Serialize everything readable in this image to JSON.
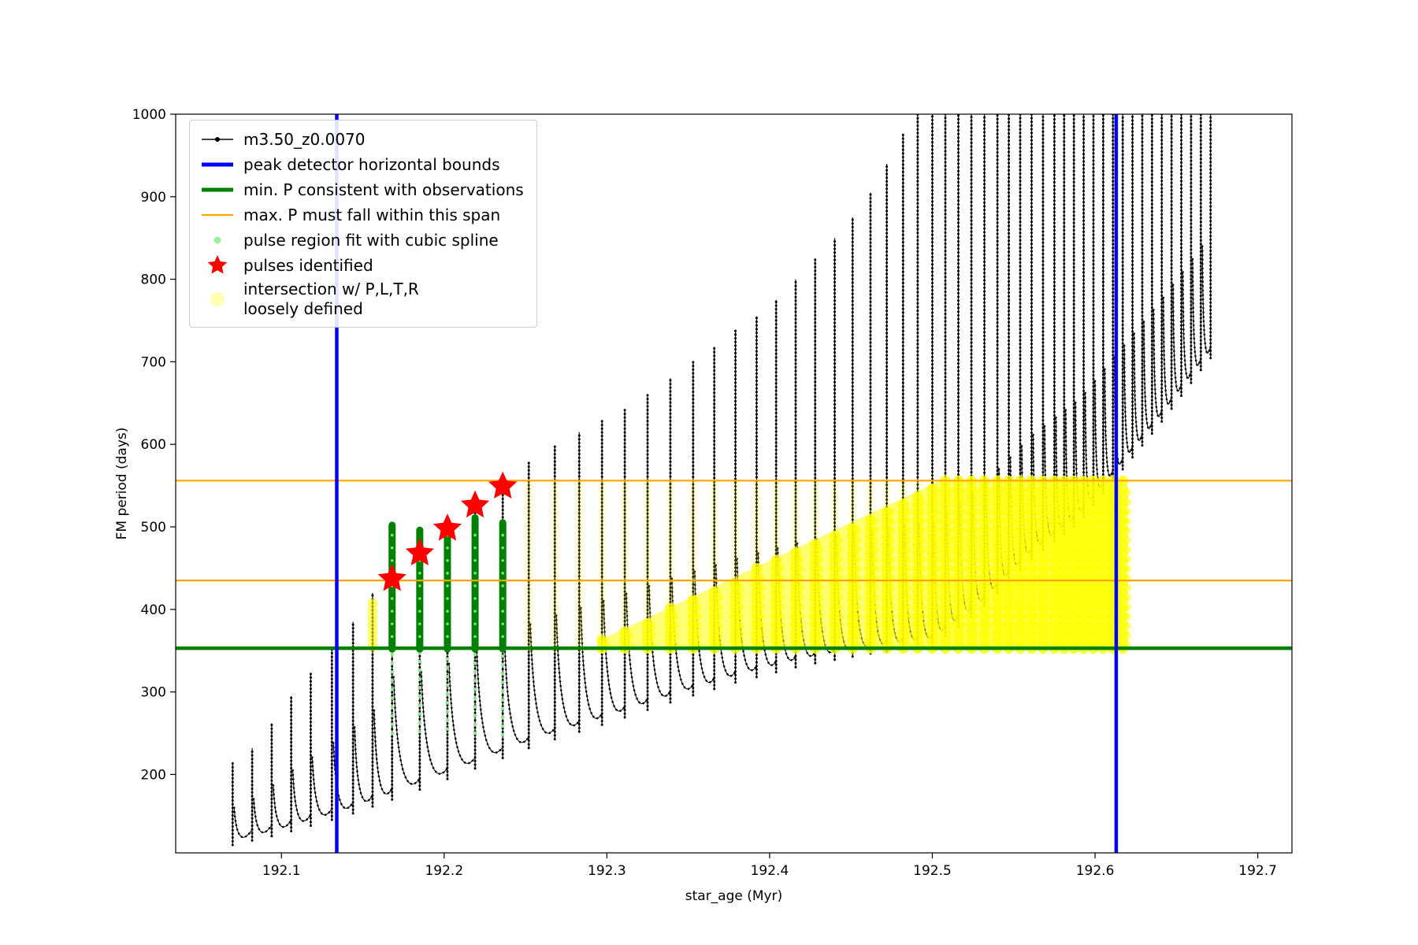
{
  "axes": {
    "xlabel": "star_age (Myr)",
    "ylabel": "FM period (days)",
    "xlim": [
      192.035,
      192.721
    ],
    "ylim": [
      105,
      1000
    ],
    "xticks": [
      192.1,
      192.2,
      192.3,
      192.4,
      192.5,
      192.6,
      192.7
    ],
    "xtick_labels": [
      "192.1",
      "192.2",
      "192.3",
      "192.4",
      "192.5",
      "192.6",
      "192.7"
    ],
    "yticks": [
      200,
      300,
      400,
      500,
      600,
      700,
      800,
      900,
      1000
    ],
    "ytick_labels": [
      "200",
      "300",
      "400",
      "500",
      "600",
      "700",
      "800",
      "900",
      "1000"
    ]
  },
  "legend": {
    "items": [
      {
        "label": "m3.50_z0.0070",
        "marker": "line-dot",
        "color": "#000000"
      },
      {
        "label": "peak detector horizontal bounds",
        "marker": "thick-line",
        "color": "#0000ff"
      },
      {
        "label": "min. P consistent with observations",
        "marker": "thick-line",
        "color": "#008000"
      },
      {
        "label": "max. P must fall within this span",
        "marker": "line",
        "color": "#ffa500"
      },
      {
        "label": "pulse region fit with cubic spline",
        "marker": "dot",
        "color": "#90ee90"
      },
      {
        "label": "pulses identified",
        "marker": "star",
        "color": "#ff0000"
      },
      {
        "label": "intersection w/ P,L,T,R\nloosely defined",
        "marker": "big-dot-faint",
        "color": "#ffff00"
      }
    ]
  },
  "chart_data": {
    "type": "scatter",
    "title": "",
    "xlabel": "star_age (Myr)",
    "ylabel": "FM period (days)",
    "xlim": [
      192.035,
      192.721
    ],
    "ylim": [
      105,
      1000
    ],
    "grid": false,
    "legend_position": "upper-left",
    "series": {
      "track": {
        "name": "m3.50_z0.0070",
        "color": "#000000",
        "description": "quasi-periodic pulsation track: narrow vertical spikes [x, peak] with slowly rising inter-pulse baseline",
        "spikes": [
          [
            192.07,
            215
          ],
          [
            192.082,
            232
          ],
          [
            192.094,
            262
          ],
          [
            192.106,
            295
          ],
          [
            192.118,
            322
          ],
          [
            192.131,
            352
          ],
          [
            192.144,
            385
          ],
          [
            192.156,
            420
          ],
          [
            192.168,
            500
          ],
          [
            192.185,
            498
          ],
          [
            192.202,
            505
          ],
          [
            192.219,
            532
          ],
          [
            192.236,
            560
          ],
          [
            192.252,
            578
          ],
          [
            192.268,
            598
          ],
          [
            192.283,
            615
          ],
          [
            192.297,
            628
          ],
          [
            192.311,
            642
          ],
          [
            192.325,
            660
          ],
          [
            192.339,
            680
          ],
          [
            192.353,
            700
          ],
          [
            192.366,
            718
          ],
          [
            192.379,
            738
          ],
          [
            192.392,
            755
          ],
          [
            192.404,
            775
          ],
          [
            192.416,
            800
          ],
          [
            192.428,
            825
          ],
          [
            192.44,
            850
          ],
          [
            192.451,
            875
          ],
          [
            192.462,
            905
          ],
          [
            192.472,
            940
          ],
          [
            192.482,
            975
          ],
          [
            192.491,
            1005
          ],
          [
            192.5,
            1030
          ],
          [
            192.508,
            1050
          ],
          [
            192.516,
            1065
          ],
          [
            192.524,
            1080
          ],
          [
            192.532,
            1090
          ],
          [
            192.54,
            1100
          ],
          [
            192.547,
            1105
          ],
          [
            192.554,
            1110
          ],
          [
            192.561,
            1115
          ],
          [
            192.568,
            1120
          ],
          [
            192.575,
            1125
          ],
          [
            192.581,
            1130
          ],
          [
            192.587,
            1135
          ],
          [
            192.593,
            1140
          ],
          [
            192.599,
            1145
          ],
          [
            192.605,
            1150
          ],
          [
            192.611,
            1155
          ],
          [
            192.617,
            1160
          ],
          [
            192.623,
            1165
          ],
          [
            192.629,
            1170
          ],
          [
            192.635,
            1175
          ],
          [
            192.641,
            1180
          ],
          [
            192.647,
            1185
          ],
          [
            192.653,
            1190
          ],
          [
            192.659,
            1195
          ],
          [
            192.665,
            1200
          ],
          [
            192.671,
            1205
          ]
        ],
        "baseline": [
          [
            192.06,
            110
          ],
          [
            192.1,
            128
          ],
          [
            192.14,
            150
          ],
          [
            192.18,
            178
          ],
          [
            192.22,
            208
          ],
          [
            192.26,
            238
          ],
          [
            192.3,
            262
          ],
          [
            192.34,
            288
          ],
          [
            192.38,
            312
          ],
          [
            192.42,
            332
          ],
          [
            192.46,
            346
          ],
          [
            192.5,
            356
          ],
          [
            192.53,
            400
          ],
          [
            192.56,
            460
          ],
          [
            192.59,
            505
          ],
          [
            192.615,
            565
          ],
          [
            192.64,
            625
          ],
          [
            192.665,
            690
          ],
          [
            192.69,
            750
          ]
        ]
      },
      "peak_detector_bounds": {
        "name": "peak detector horizontal bounds",
        "color": "#0000ff",
        "x_values": [
          192.134,
          192.613
        ]
      },
      "min_P": {
        "name": "min. P consistent with observations",
        "color": "#008000",
        "y": 353
      },
      "max_P_span": {
        "name": "max. P must fall within this span",
        "color": "#ffa500",
        "y_values": [
          435,
          556
        ]
      },
      "pulse_region": {
        "name": "pulse region fit with cubic spline",
        "bar_color": "#008000",
        "dot_color": "#90ee90",
        "columns": [
          {
            "x": 192.168,
            "top": 502,
            "bar_bottom": 352,
            "dots_bottom": 250
          },
          {
            "x": 192.185,
            "top": 496,
            "bar_bottom": 352,
            "dots_bottom": 252
          },
          {
            "x": 192.202,
            "top": 503,
            "bar_bottom": 352,
            "dots_bottom": 255
          },
          {
            "x": 192.219,
            "top": 511,
            "bar_bottom": 352,
            "dots_bottom": 250
          },
          {
            "x": 192.236,
            "top": 505,
            "bar_bottom": 352,
            "dots_bottom": 248
          }
        ]
      },
      "pulses": {
        "name": "pulses identified",
        "color": "#ff0000",
        "points": [
          [
            192.168,
            437
          ],
          [
            192.185,
            468
          ],
          [
            192.202,
            498
          ],
          [
            192.219,
            526
          ],
          [
            192.236,
            549
          ]
        ]
      },
      "intersection": {
        "name": "intersection w/ P,L,T,R loosely defined",
        "color": "#ffff00",
        "bottom": 353,
        "top": 556,
        "x_start": 192.295,
        "x_end": 192.617,
        "ramp_top_start": 362,
        "ramp_x_end": 192.505,
        "faint_x_start": 192.25,
        "blob": {
          "x": 192.156,
          "y_min": 355,
          "y_max": 412
        }
      }
    }
  }
}
